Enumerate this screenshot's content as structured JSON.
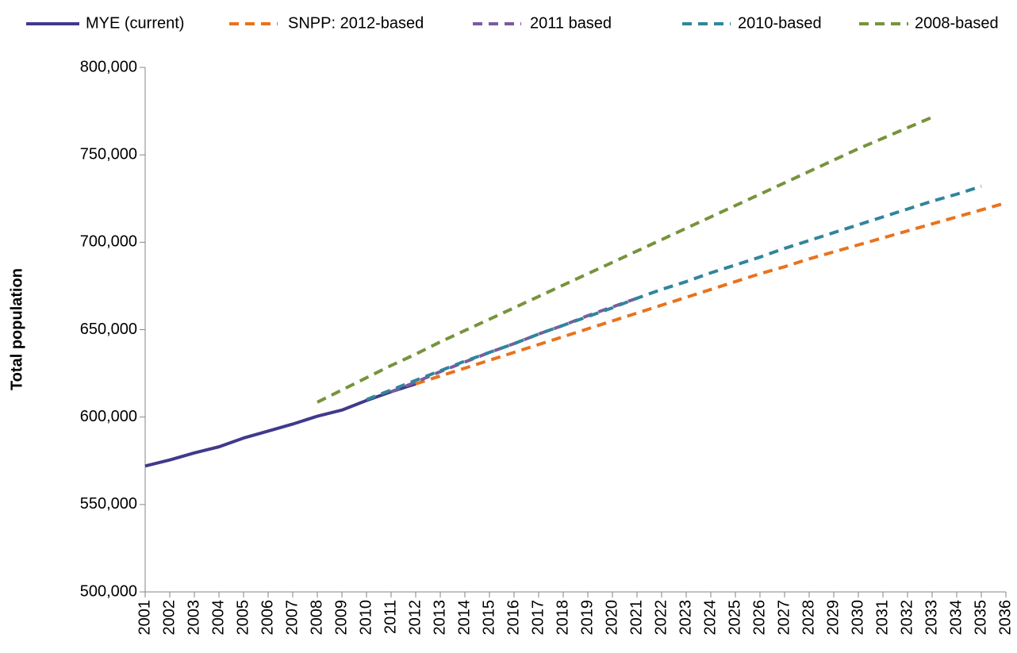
{
  "chart_data": {
    "type": "line",
    "categories": [
      "2001",
      "2002",
      "2003",
      "2004",
      "2005",
      "2006",
      "2007",
      "2008",
      "2009",
      "2010",
      "2011",
      "2012",
      "2013",
      "2014",
      "2015",
      "2016",
      "2017",
      "2018",
      "2019",
      "2020",
      "2021",
      "2022",
      "2023",
      "2024",
      "2025",
      "2026",
      "2027",
      "2028",
      "2029",
      "2030",
      "2031",
      "2032",
      "2033",
      "2034",
      "2035",
      "2036"
    ],
    "y_label": "Total population",
    "ylim": [
      500000,
      800000
    ],
    "yticks": [
      {
        "value": 500000,
        "label": "500,000"
      },
      {
        "value": 550000,
        "label": "550,000"
      },
      {
        "value": 600000,
        "label": "600,000"
      },
      {
        "value": 650000,
        "label": "650,000"
      },
      {
        "value": 700000,
        "label": "700,000"
      },
      {
        "value": 750000,
        "label": "750,000"
      },
      {
        "value": 800000,
        "label": "800,000"
      }
    ],
    "series": [
      {
        "name": "MYE (current)",
        "color": "#403a8c",
        "dashed": false,
        "values": [
          572000,
          575500,
          579500,
          583000,
          588000,
          592000,
          596000,
          600500,
          604000,
          609500,
          614500,
          619000,
          null,
          null,
          null,
          null,
          null,
          null,
          null,
          null,
          null,
          null,
          null,
          null,
          null,
          null,
          null,
          null,
          null,
          null,
          null,
          null,
          null,
          null,
          null,
          null
        ]
      },
      {
        "name": "SNPP: 2012-based",
        "color": "#e8731f",
        "dashed": true,
        "values": [
          null,
          null,
          null,
          null,
          null,
          null,
          null,
          null,
          null,
          null,
          null,
          619000,
          623500,
          628000,
          632500,
          637000,
          641500,
          646000,
          650500,
          655000,
          659500,
          664000,
          668500,
          673000,
          677500,
          682000,
          686000,
          690500,
          694500,
          698500,
          702500,
          706500,
          710500,
          714500,
          718500,
          722500
        ]
      },
      {
        "name": "2011 based",
        "color": "#7b5c9c",
        "dashed": true,
        "values": [
          null,
          null,
          null,
          null,
          null,
          null,
          null,
          null,
          null,
          null,
          614500,
          620000,
          626000,
          631500,
          637000,
          642000,
          647500,
          652500,
          658000,
          663000,
          668000,
          null,
          null,
          null,
          null,
          null,
          null,
          null,
          null,
          null,
          null,
          null,
          null,
          null,
          null,
          null
        ]
      },
      {
        "name": "2010-based",
        "color": "#31859c",
        "dashed": true,
        "values": [
          null,
          null,
          null,
          null,
          null,
          null,
          null,
          null,
          null,
          610000,
          615500,
          621000,
          626500,
          632000,
          637000,
          642000,
          647500,
          652500,
          657500,
          662500,
          668000,
          673000,
          677500,
          682500,
          687000,
          691500,
          696500,
          701000,
          705500,
          710000,
          714500,
          719000,
          723500,
          727500,
          732000,
          null
        ]
      },
      {
        "name": "2008-based",
        "color": "#77933c",
        "dashed": true,
        "values": [
          null,
          null,
          null,
          null,
          null,
          null,
          null,
          608500,
          615500,
          622500,
          629500,
          636000,
          643000,
          649500,
          656000,
          662500,
          669000,
          675500,
          682000,
          688500,
          695000,
          701500,
          708000,
          714500,
          721000,
          727500,
          734000,
          740500,
          747000,
          753500,
          759500,
          765500,
          771500,
          null,
          null,
          null
        ]
      }
    ]
  }
}
